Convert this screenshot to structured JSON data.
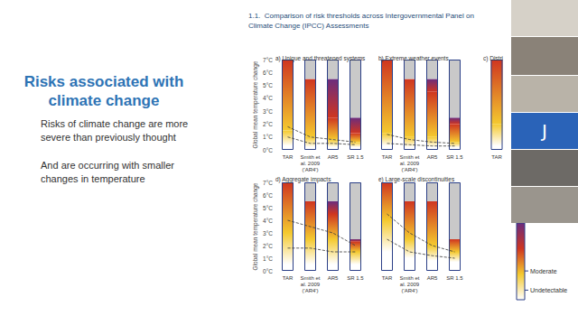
{
  "slide": {
    "title": "Risks associated with climate change",
    "bullets": [
      "Risks of climate change are more severe than previously thought",
      "And are occurring with smaller changes in temperature"
    ]
  },
  "figure_title": [
    "1.1.  Comparison of risk thresholds across Intergovernmental Panel on",
    "Climate Change (IPCC) Assessments"
  ],
  "participant_initial": "J",
  "chart_data": [
    {
      "type": "bar",
      "title": "a) Unique and threatened systems",
      "y_label": "Global mean temperature change",
      "categories": [
        "TAR",
        "Smith et\nal. 2009\n('AR4')",
        "AR5",
        "SR 1.5"
      ],
      "stacked": true,
      "grid": false,
      "ylim": [
        0,
        7
      ],
      "yticks": [
        {
          "value": 0,
          "label": "0°C"
        },
        {
          "value": 1,
          "label": "1°C"
        },
        {
          "value": 2,
          "label": "2°C"
        },
        {
          "value": 3,
          "label": "3°C"
        },
        {
          "value": 4,
          "label": "4°C"
        },
        {
          "value": 5,
          "label": "5°C"
        },
        {
          "value": 6,
          "label": "6°C"
        },
        {
          "value": 7,
          "label": "7°C"
        }
      ],
      "series": [
        {
          "name": "Undetectable",
          "color": "#ffffff",
          "values": [
            0.3,
            0.2,
            0.2,
            0.2
          ]
        },
        {
          "name": "Moderate",
          "color": "#f4c92f",
          "values": [
            1.2,
            0.8,
            0.6,
            0.4
          ]
        },
        {
          "color": "#cf3520",
          "values": [
            5.5,
            4.5,
            1.7,
            0.7
          ]
        },
        {
          "color": "#6b2c7e",
          "values": [
            0,
            0,
            3.0,
            1.2
          ]
        },
        {
          "color": "#c9c9c9",
          "values": [
            0,
            1.5,
            1.5,
            4.5
          ]
        },
        {
          "type": "line",
          "line_style": "dashed",
          "color": "#3a3a3a",
          "values": [
            1.8,
            1.0,
            0.8,
            0.6
          ]
        },
        {
          "type": "line",
          "line_style": "dashed",
          "color": "#3a3a3a",
          "values": [
            1.0,
            0.5,
            0.5,
            0.4
          ]
        }
      ]
    },
    {
      "type": "bar",
      "title": "b) Extreme weather events",
      "tick_labels": "x",
      "categories": [
        "TAR",
        "Smith et\nal. 2009\n('AR4')",
        "AR5",
        "SR 1.5"
      ],
      "stacked": true,
      "grid": false,
      "ylim": [
        0,
        7
      ],
      "yticks": [
        {
          "value": 0,
          "label": "0°C"
        },
        {
          "value": 1,
          "label": "1°C"
        },
        {
          "value": 2,
          "label": "2°C"
        },
        {
          "value": 3,
          "label": "3°C"
        },
        {
          "value": 4,
          "label": "4°C"
        },
        {
          "value": 5,
          "label": "5°C"
        },
        {
          "value": 6,
          "label": "6°C"
        },
        {
          "value": 7,
          "label": "7°C"
        }
      ],
      "series": [
        {
          "name": "Undetectable",
          "color": "#ffffff",
          "values": [
            0.3,
            0.2,
            0.2,
            0.2
          ]
        },
        {
          "name": "Moderate",
          "color": "#f4c92f",
          "values": [
            1.0,
            0.8,
            0.8,
            0.4
          ]
        },
        {
          "color": "#cf3520",
          "values": [
            5.7,
            4.5,
            3.5,
            1.4
          ]
        },
        {
          "color": "#6b2c7e",
          "values": [
            0,
            0,
            1.0,
            0.5
          ]
        },
        {
          "color": "#c9c9c9",
          "values": [
            0,
            1.5,
            1.5,
            4.5
          ]
        },
        {
          "type": "line",
          "line_style": "dashed",
          "color": "#3a3a3a",
          "values": [
            1.2,
            0.8,
            0.6,
            0.5
          ]
        },
        {
          "type": "line",
          "line_style": "dashed",
          "color": "#3a3a3a",
          "values": [
            0.5,
            0.4,
            0.3,
            0.3
          ]
        }
      ]
    },
    {
      "type": "bar",
      "title": "c) Distri",
      "tick_labels": "x",
      "categories": [
        "TAR"
      ],
      "stacked": true,
      "grid": false,
      "ylim": [
        0,
        7
      ],
      "yticks": [
        {
          "value": 0,
          "label": "0°C"
        },
        {
          "value": 1,
          "label": "1°C"
        },
        {
          "value": 2,
          "label": "2°C"
        },
        {
          "value": 3,
          "label": "3°C"
        },
        {
          "value": 4,
          "label": "4°C"
        },
        {
          "value": 5,
          "label": "5°C"
        },
        {
          "value": 6,
          "label": "6°C"
        },
        {
          "value": 7,
          "label": "7°C"
        }
      ],
      "series": [
        {
          "name": "Undetectable",
          "color": "#ffffff",
          "values": [
            0.3
          ]
        },
        {
          "name": "Moderate",
          "color": "#f4c92f",
          "values": [
            1.7
          ]
        },
        {
          "color": "#cf3520",
          "values": [
            5.0
          ]
        },
        {
          "color": "#6b2c7e",
          "values": [
            0
          ]
        },
        {
          "color": "#c9c9c9",
          "values": [
            0
          ]
        }
      ]
    },
    {
      "type": "bar",
      "title": "d) Aggregate impacts",
      "y_label": "Global mean temperature change",
      "categories": [
        "TAR",
        "Smith et\nal. 2009\n('AR4')",
        "AR5",
        "SR 1.5"
      ],
      "stacked": true,
      "grid": false,
      "ylim": [
        0,
        7
      ],
      "yticks": [
        {
          "value": 0,
          "label": "0°C"
        },
        {
          "value": 1,
          "label": "1°C"
        },
        {
          "value": 2,
          "label": "2°C"
        },
        {
          "value": 3,
          "label": "3°C"
        },
        {
          "value": 4,
          "label": "4°C"
        },
        {
          "value": 5,
          "label": "5°C"
        },
        {
          "value": 6,
          "label": "6°C"
        },
        {
          "value": 7,
          "label": "7°C"
        }
      ],
      "series": [
        {
          "name": "Undetectable",
          "color": "#ffffff",
          "values": [
            0.5,
            0.5,
            0.5,
            0.5
          ]
        },
        {
          "name": "Moderate",
          "color": "#f4c92f",
          "values": [
            2.5,
            2.0,
            2.0,
            1.0
          ]
        },
        {
          "color": "#cf3520",
          "values": [
            4.0,
            3.0,
            2.0,
            0.8
          ]
        },
        {
          "color": "#6b2c7e",
          "values": [
            0,
            0,
            1.0,
            0.2
          ]
        },
        {
          "color": "#c9c9c9",
          "values": [
            0,
            1.5,
            1.5,
            4.5
          ]
        },
        {
          "type": "line",
          "line_style": "dashed",
          "color": "#3a3a3a",
          "values": [
            4.0,
            3.5,
            3.0,
            2.0
          ]
        },
        {
          "type": "line",
          "line_style": "dashed",
          "color": "#3a3a3a",
          "values": [
            1.8,
            1.8,
            1.5,
            1.5
          ]
        }
      ]
    },
    {
      "type": "bar",
      "title": "e) Large-scale discontinuities",
      "tick_labels": "x",
      "legend": "bottom right",
      "categories": [
        "TAR",
        "Smith et\nal. 2009\n('AR4')",
        "AR5",
        "SR 1.5"
      ],
      "stacked": true,
      "grid": false,
      "ylim": [
        0,
        7
      ],
      "yticks": [
        {
          "value": 0,
          "label": "0°C"
        },
        {
          "value": 1,
          "label": "1°C"
        },
        {
          "value": 2,
          "label": "2°C"
        },
        {
          "value": 3,
          "label": "3°C"
        },
        {
          "value": 4,
          "label": "4°C"
        },
        {
          "value": 5,
          "label": "5°C"
        },
        {
          "value": 6,
          "label": "6°C"
        },
        {
          "value": 7,
          "label": "7°C"
        }
      ],
      "series": [
        {
          "name": "Undetectable",
          "color": "#ffffff",
          "values": [
            1.5,
            1.0,
            0.8,
            0.7
          ]
        },
        {
          "name": "Moderate",
          "color": "#f4c92f",
          "values": [
            2.5,
            1.5,
            1.2,
            0.8
          ]
        },
        {
          "color": "#cf3520",
          "values": [
            3.0,
            3.0,
            3.5,
            1.0
          ]
        },
        {
          "color": "#6b2c7e",
          "values": [
            0,
            0,
            0,
            0
          ]
        },
        {
          "color": "#c9c9c9",
          "values": [
            0,
            1.5,
            1.5,
            4.5
          ]
        },
        {
          "type": "line",
          "line_style": "dashed",
          "color": "#3a3a3a",
          "values": [
            4.5,
            3.0,
            2.0,
            1.5
          ]
        },
        {
          "type": "line",
          "line_style": "dashed",
          "color": "#3a3a3a",
          "values": [
            2.5,
            1.5,
            1.2,
            1.0
          ]
        }
      ]
    }
  ]
}
